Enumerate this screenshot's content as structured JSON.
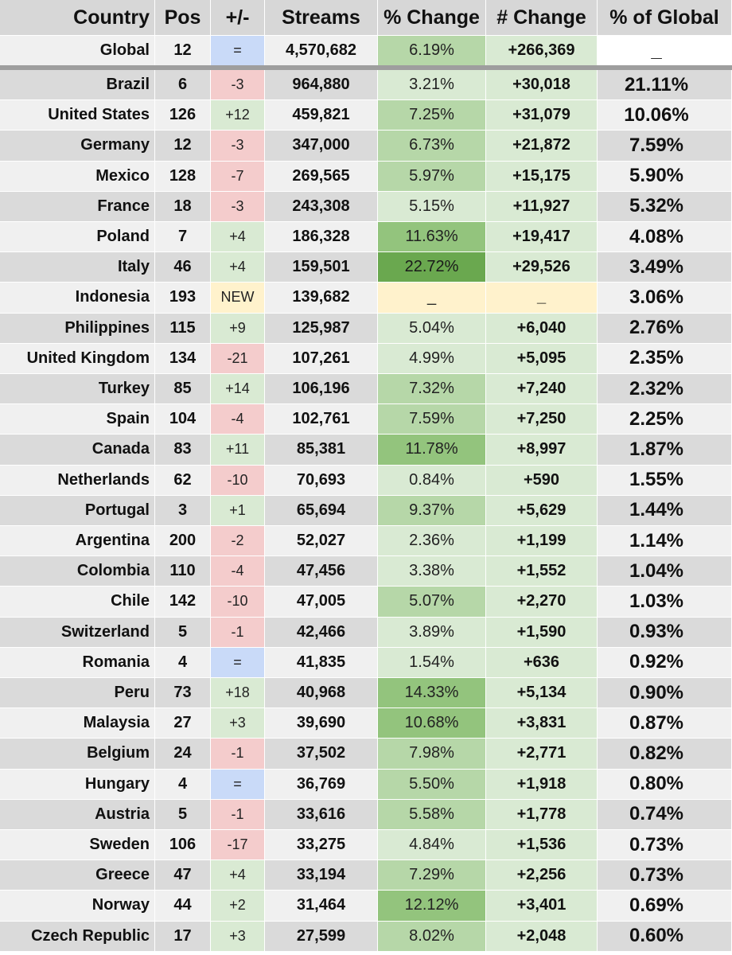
{
  "header": {
    "country": "Country",
    "pos": "Pos",
    "pm": "+/-",
    "streams": "Streams",
    "pct_change": "% Change",
    "num_change": "# Change",
    "pct_global": "% of Global"
  },
  "colors": {
    "row_dark": "#dadada",
    "row_light": "#f0f0f0",
    "pm_up": "#d9ead3",
    "pm_down": "#f4cccc",
    "pm_same": "#c9daf8",
    "pm_new": "#fff2cc",
    "green_light": "#d9ead3",
    "green_mid": "#b6d7a8",
    "green_strong": "#93c47d",
    "green_deep": "#6aa84f",
    "na_yellow": "#fff2cc"
  },
  "global": {
    "country": "Global",
    "pos": "12",
    "pm": "=",
    "pm_class": "same",
    "streams": "4,570,682",
    "pct_change": "6.19%",
    "pct_shade": "mid",
    "num_change": "+266,369",
    "pct_global": "_"
  },
  "rows": [
    {
      "country": "Brazil",
      "pos": "6",
      "pm": "-3",
      "pm_class": "down",
      "streams": "964,880",
      "pct_change": "3.21%",
      "pct_shade": "light",
      "num_change": "+30,018",
      "pct_global": "21.11%"
    },
    {
      "country": "United States",
      "pos": "126",
      "pm": "+12",
      "pm_class": "up",
      "streams": "459,821",
      "pct_change": "7.25%",
      "pct_shade": "mid",
      "num_change": "+31,079",
      "pct_global": "10.06%"
    },
    {
      "country": "Germany",
      "pos": "12",
      "pm": "-3",
      "pm_class": "down",
      "streams": "347,000",
      "pct_change": "6.73%",
      "pct_shade": "mid",
      "num_change": "+21,872",
      "pct_global": "7.59%"
    },
    {
      "country": "Mexico",
      "pos": "128",
      "pm": "-7",
      "pm_class": "down",
      "streams": "269,565",
      "pct_change": "5.97%",
      "pct_shade": "mid",
      "num_change": "+15,175",
      "pct_global": "5.90%"
    },
    {
      "country": "France",
      "pos": "18",
      "pm": "-3",
      "pm_class": "down",
      "streams": "243,308",
      "pct_change": "5.15%",
      "pct_shade": "light",
      "num_change": "+11,927",
      "pct_global": "5.32%"
    },
    {
      "country": "Poland",
      "pos": "7",
      "pm": "+4",
      "pm_class": "up",
      "streams": "186,328",
      "pct_change": "11.63%",
      "pct_shade": "strong",
      "num_change": "+19,417",
      "pct_global": "4.08%"
    },
    {
      "country": "Italy",
      "pos": "46",
      "pm": "+4",
      "pm_class": "up",
      "streams": "159,501",
      "pct_change": "22.72%",
      "pct_shade": "deep",
      "num_change": "+29,526",
      "pct_global": "3.49%"
    },
    {
      "country": "Indonesia",
      "pos": "193",
      "pm": "NEW",
      "pm_class": "new",
      "streams": "139,682",
      "pct_change": "_",
      "pct_shade": "na",
      "num_change": "_",
      "pct_global": "3.06%"
    },
    {
      "country": "Philippines",
      "pos": "115",
      "pm": "+9",
      "pm_class": "up",
      "streams": "125,987",
      "pct_change": "5.04%",
      "pct_shade": "light",
      "num_change": "+6,040",
      "pct_global": "2.76%"
    },
    {
      "country": "United Kingdom",
      "pos": "134",
      "pm": "-21",
      "pm_class": "down",
      "streams": "107,261",
      "pct_change": "4.99%",
      "pct_shade": "light",
      "num_change": "+5,095",
      "pct_global": "2.35%"
    },
    {
      "country": "Turkey",
      "pos": "85",
      "pm": "+14",
      "pm_class": "up",
      "streams": "106,196",
      "pct_change": "7.32%",
      "pct_shade": "mid",
      "num_change": "+7,240",
      "pct_global": "2.32%"
    },
    {
      "country": "Spain",
      "pos": "104",
      "pm": "-4",
      "pm_class": "down",
      "streams": "102,761",
      "pct_change": "7.59%",
      "pct_shade": "mid",
      "num_change": "+7,250",
      "pct_global": "2.25%"
    },
    {
      "country": "Canada",
      "pos": "83",
      "pm": "+11",
      "pm_class": "up",
      "streams": "85,381",
      "pct_change": "11.78%",
      "pct_shade": "strong",
      "num_change": "+8,997",
      "pct_global": "1.87%"
    },
    {
      "country": "Netherlands",
      "pos": "62",
      "pm": "-10",
      "pm_class": "down",
      "streams": "70,693",
      "pct_change": "0.84%",
      "pct_shade": "light",
      "num_change": "+590",
      "pct_global": "1.55%"
    },
    {
      "country": "Portugal",
      "pos": "3",
      "pm": "+1",
      "pm_class": "up",
      "streams": "65,694",
      "pct_change": "9.37%",
      "pct_shade": "mid",
      "num_change": "+5,629",
      "pct_global": "1.44%"
    },
    {
      "country": "Argentina",
      "pos": "200",
      "pm": "-2",
      "pm_class": "down",
      "streams": "52,027",
      "pct_change": "2.36%",
      "pct_shade": "light",
      "num_change": "+1,199",
      "pct_global": "1.14%"
    },
    {
      "country": "Colombia",
      "pos": "110",
      "pm": "-4",
      "pm_class": "down",
      "streams": "47,456",
      "pct_change": "3.38%",
      "pct_shade": "light",
      "num_change": "+1,552",
      "pct_global": "1.04%"
    },
    {
      "country": "Chile",
      "pos": "142",
      "pm": "-10",
      "pm_class": "down",
      "streams": "47,005",
      "pct_change": "5.07%",
      "pct_shade": "mid",
      "num_change": "+2,270",
      "pct_global": "1.03%"
    },
    {
      "country": "Switzerland",
      "pos": "5",
      "pm": "-1",
      "pm_class": "down",
      "streams": "42,466",
      "pct_change": "3.89%",
      "pct_shade": "light",
      "num_change": "+1,590",
      "pct_global": "0.93%"
    },
    {
      "country": "Romania",
      "pos": "4",
      "pm": "=",
      "pm_class": "same",
      "streams": "41,835",
      "pct_change": "1.54%",
      "pct_shade": "light",
      "num_change": "+636",
      "pct_global": "0.92%"
    },
    {
      "country": "Peru",
      "pos": "73",
      "pm": "+18",
      "pm_class": "up",
      "streams": "40,968",
      "pct_change": "14.33%",
      "pct_shade": "strong",
      "num_change": "+5,134",
      "pct_global": "0.90%"
    },
    {
      "country": "Malaysia",
      "pos": "27",
      "pm": "+3",
      "pm_class": "up",
      "streams": "39,690",
      "pct_change": "10.68%",
      "pct_shade": "strong",
      "num_change": "+3,831",
      "pct_global": "0.87%"
    },
    {
      "country": "Belgium",
      "pos": "24",
      "pm": "-1",
      "pm_class": "down",
      "streams": "37,502",
      "pct_change": "7.98%",
      "pct_shade": "mid",
      "num_change": "+2,771",
      "pct_global": "0.82%"
    },
    {
      "country": "Hungary",
      "pos": "4",
      "pm": "=",
      "pm_class": "same",
      "streams": "36,769",
      "pct_change": "5.50%",
      "pct_shade": "mid",
      "num_change": "+1,918",
      "pct_global": "0.80%"
    },
    {
      "country": "Austria",
      "pos": "5",
      "pm": "-1",
      "pm_class": "down",
      "streams": "33,616",
      "pct_change": "5.58%",
      "pct_shade": "mid",
      "num_change": "+1,778",
      "pct_global": "0.74%"
    },
    {
      "country": "Sweden",
      "pos": "106",
      "pm": "-17",
      "pm_class": "down",
      "streams": "33,275",
      "pct_change": "4.84%",
      "pct_shade": "light",
      "num_change": "+1,536",
      "pct_global": "0.73%"
    },
    {
      "country": "Greece",
      "pos": "47",
      "pm": "+4",
      "pm_class": "up",
      "streams": "33,194",
      "pct_change": "7.29%",
      "pct_shade": "mid",
      "num_change": "+2,256",
      "pct_global": "0.73%"
    },
    {
      "country": "Norway",
      "pos": "44",
      "pm": "+2",
      "pm_class": "up",
      "streams": "31,464",
      "pct_change": "12.12%",
      "pct_shade": "strong",
      "num_change": "+3,401",
      "pct_global": "0.69%"
    },
    {
      "country": "Czech Republic",
      "pos": "17",
      "pm": "+3",
      "pm_class": "up",
      "streams": "27,599",
      "pct_change": "8.02%",
      "pct_shade": "mid",
      "num_change": "+2,048",
      "pct_global": "0.60%"
    }
  ]
}
